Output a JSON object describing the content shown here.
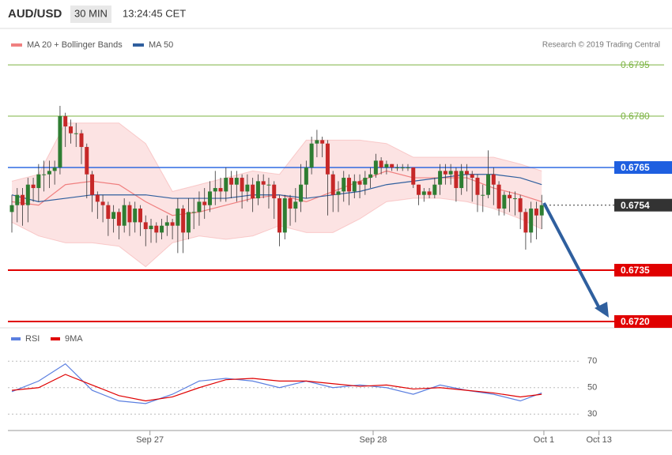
{
  "header": {
    "symbol": "AUD/USD",
    "interval": "30 MIN",
    "time": "13:24:45 CET"
  },
  "credit": "Research © 2019 Trading Central",
  "chart_data": [
    {
      "type": "candlestick",
      "ylim": [
        0.6718,
        0.6797
      ],
      "up_color": "#2e7d32",
      "down_color": "#c62828",
      "levels": [
        {
          "value": 0.6795,
          "color": "#7cb342",
          "badge": false
        },
        {
          "value": 0.678,
          "label": "0.6780",
          "color": "#7cb342",
          "badge": false
        },
        {
          "value": 0.6765,
          "color": "#1e5fe0",
          "badge": true
        },
        {
          "value": 0.6754,
          "color": "#333333",
          "badge": true,
          "dashed": true
        },
        {
          "value": 0.6735,
          "color": "#e00000",
          "badge": true
        },
        {
          "value": 0.672,
          "label": "0.6720",
          "color": "#e00000",
          "badge": true
        }
      ],
      "candles": [
        [
          0.6752,
          0.6757,
          0.6746,
          0.6754
        ],
        [
          0.6754,
          0.6759,
          0.6749,
          0.6757
        ],
        [
          0.6757,
          0.6759,
          0.6748,
          0.6754
        ],
        [
          0.6754,
          0.6762,
          0.6749,
          0.676
        ],
        [
          0.676,
          0.6762,
          0.6755,
          0.6759
        ],
        [
          0.6759,
          0.6766,
          0.6755,
          0.6763
        ],
        [
          0.6763,
          0.6767,
          0.6758,
          0.6763
        ],
        [
          0.6763,
          0.6767,
          0.6759,
          0.6764
        ],
        [
          0.6764,
          0.6767,
          0.676,
          0.6765
        ],
        [
          0.6765,
          0.6783,
          0.6763,
          0.678
        ],
        [
          0.678,
          0.6781,
          0.6771,
          0.6777
        ],
        [
          0.6777,
          0.6779,
          0.6772,
          0.6775
        ],
        [
          0.6775,
          0.6778,
          0.6771,
          0.6775
        ],
        [
          0.6775,
          0.6776,
          0.6766,
          0.6771
        ],
        [
          0.6771,
          0.6772,
          0.6756,
          0.6763
        ],
        [
          0.6763,
          0.6764,
          0.6752,
          0.6757
        ],
        [
          0.6757,
          0.6758,
          0.675,
          0.6755
        ],
        [
          0.6755,
          0.6757,
          0.6749,
          0.6754
        ],
        [
          0.6754,
          0.6755,
          0.6745,
          0.675
        ],
        [
          0.675,
          0.6754,
          0.6746,
          0.6752
        ],
        [
          0.6752,
          0.6753,
          0.6744,
          0.6748
        ],
        [
          0.6748,
          0.6756,
          0.6746,
          0.6754
        ],
        [
          0.6754,
          0.6755,
          0.6745,
          0.6749
        ],
        [
          0.6749,
          0.6755,
          0.6746,
          0.6753
        ],
        [
          0.6753,
          0.6754,
          0.6745,
          0.6749
        ],
        [
          0.6749,
          0.6751,
          0.6742,
          0.6747
        ],
        [
          0.6747,
          0.675,
          0.6743,
          0.6748
        ],
        [
          0.6748,
          0.6749,
          0.6743,
          0.6746
        ],
        [
          0.6746,
          0.675,
          0.6744,
          0.6748
        ],
        [
          0.6748,
          0.6751,
          0.6745,
          0.6749
        ],
        [
          0.6749,
          0.675,
          0.6744,
          0.6748
        ],
        [
          0.6748,
          0.6756,
          0.674,
          0.6753
        ],
        [
          0.6753,
          0.6754,
          0.674,
          0.6746
        ],
        [
          0.6746,
          0.6756,
          0.6744,
          0.6752
        ],
        [
          0.6752,
          0.6756,
          0.6747,
          0.6752
        ],
        [
          0.6752,
          0.6758,
          0.6748,
          0.6755
        ],
        [
          0.6755,
          0.6759,
          0.675,
          0.6754
        ],
        [
          0.6754,
          0.6761,
          0.6752,
          0.6758
        ],
        [
          0.6758,
          0.6764,
          0.6754,
          0.6759
        ],
        [
          0.6759,
          0.6762,
          0.6755,
          0.6758
        ],
        [
          0.6758,
          0.6765,
          0.6755,
          0.6762
        ],
        [
          0.6762,
          0.6764,
          0.6756,
          0.676
        ],
        [
          0.676,
          0.6764,
          0.6755,
          0.6762
        ],
        [
          0.6762,
          0.6763,
          0.6753,
          0.6758
        ],
        [
          0.6758,
          0.6763,
          0.6755,
          0.676
        ],
        [
          0.676,
          0.6762,
          0.6752,
          0.6756
        ],
        [
          0.6756,
          0.6763,
          0.6754,
          0.6761
        ],
        [
          0.6761,
          0.6763,
          0.6756,
          0.676
        ],
        [
          0.676,
          0.6762,
          0.6753,
          0.676
        ],
        [
          0.676,
          0.6761,
          0.675,
          0.6756
        ],
        [
          0.6756,
          0.6757,
          0.6742,
          0.6746
        ],
        [
          0.6746,
          0.6757,
          0.6744,
          0.6756
        ],
        [
          0.6756,
          0.6757,
          0.6748,
          0.6753
        ],
        [
          0.6753,
          0.6759,
          0.6749,
          0.6755
        ],
        [
          0.6755,
          0.6766,
          0.6752,
          0.676
        ],
        [
          0.676,
          0.6767,
          0.6756,
          0.6765
        ],
        [
          0.6765,
          0.6774,
          0.6763,
          0.6772
        ],
        [
          0.6772,
          0.6776,
          0.6768,
          0.6773
        ],
        [
          0.6773,
          0.6774,
          0.6768,
          0.6772
        ],
        [
          0.6772,
          0.6773,
          0.6751,
          0.6763
        ],
        [
          0.6763,
          0.6764,
          0.6752,
          0.6757
        ],
        [
          0.6757,
          0.6761,
          0.6752,
          0.6758
        ],
        [
          0.6758,
          0.6764,
          0.6755,
          0.6762
        ],
        [
          0.6762,
          0.6763,
          0.6754,
          0.6758
        ],
        [
          0.6758,
          0.6763,
          0.6756,
          0.6761
        ],
        [
          0.6761,
          0.6763,
          0.6756,
          0.676
        ],
        [
          0.676,
          0.6764,
          0.6757,
          0.6762
        ],
        [
          0.6762,
          0.6765,
          0.6759,
          0.6763
        ],
        [
          0.6763,
          0.6769,
          0.6762,
          0.6767
        ],
        [
          0.6767,
          0.6768,
          0.6763,
          0.6765
        ],
        [
          0.6765,
          0.6767,
          0.6763,
          0.6766
        ],
        [
          0.6766,
          0.6766,
          0.6764,
          0.6765
        ],
        [
          0.6765,
          0.6766,
          0.6764,
          0.6765
        ],
        [
          0.6765,
          0.6766,
          0.6764,
          0.6765
        ],
        [
          0.6765,
          0.6766,
          0.6764,
          0.6765
        ],
        [
          0.6765,
          0.6765,
          0.6759,
          0.676
        ],
        [
          0.676,
          0.676,
          0.6754,
          0.6757
        ],
        [
          0.6757,
          0.6759,
          0.6755,
          0.6758
        ],
        [
          0.6758,
          0.6759,
          0.6756,
          0.6757
        ],
        [
          0.6757,
          0.6762,
          0.6756,
          0.676
        ],
        [
          0.676,
          0.6766,
          0.6757,
          0.6764
        ],
        [
          0.6764,
          0.6766,
          0.676,
          0.6763
        ],
        [
          0.6763,
          0.6766,
          0.676,
          0.6764
        ],
        [
          0.6764,
          0.6765,
          0.6755,
          0.6759
        ],
        [
          0.6759,
          0.6766,
          0.6757,
          0.6764
        ],
        [
          0.6764,
          0.6766,
          0.6758,
          0.6763
        ],
        [
          0.6763,
          0.6764,
          0.6755,
          0.6762
        ],
        [
          0.6762,
          0.6763,
          0.6752,
          0.6757
        ],
        [
          0.6757,
          0.676,
          0.6752,
          0.6757
        ],
        [
          0.6757,
          0.677,
          0.6756,
          0.6763
        ],
        [
          0.6763,
          0.6765,
          0.6754,
          0.676
        ],
        [
          0.676,
          0.6761,
          0.6751,
          0.6753
        ],
        [
          0.6753,
          0.6758,
          0.6751,
          0.6757
        ],
        [
          0.6757,
          0.6758,
          0.6752,
          0.6756
        ],
        [
          0.6756,
          0.6758,
          0.6751,
          0.6756
        ],
        [
          0.6756,
          0.6757,
          0.6747,
          0.6752
        ],
        [
          0.6752,
          0.6753,
          0.6741,
          0.6746
        ],
        [
          0.6746,
          0.6755,
          0.6743,
          0.6753
        ],
        [
          0.6753,
          0.6755,
          0.6744,
          0.6751
        ],
        [
          0.6751,
          0.6757,
          0.6747,
          0.6754
        ]
      ],
      "x": [
        0,
        5,
        10,
        15,
        20,
        25,
        30,
        35,
        40,
        45,
        50,
        55,
        60,
        65,
        70,
        75,
        80,
        85,
        90,
        95,
        99
      ],
      "series": [
        {
          "name": "MA 20 + Bollinger Bands",
          "color": "#f08080",
          "values": [
            0.6755,
            0.6754,
            0.676,
            0.6761,
            0.676,
            0.6755,
            0.6751,
            0.6752,
            0.6754,
            0.6756,
            0.6757,
            0.6755,
            0.6758,
            0.6761,
            0.6764,
            0.6762,
            0.6762,
            0.6762,
            0.6759,
            0.6757,
            0.6755
          ],
          "upper": [
            0.6761,
            0.6763,
            0.6778,
            0.6778,
            0.6778,
            0.6772,
            0.6758,
            0.676,
            0.6762,
            0.6764,
            0.6763,
            0.6773,
            0.6773,
            0.6773,
            0.6772,
            0.6768,
            0.6768,
            0.6768,
            0.6768,
            0.6766,
            0.6764
          ],
          "lower": [
            0.6749,
            0.6745,
            0.6743,
            0.6743,
            0.6742,
            0.6736,
            0.6743,
            0.6745,
            0.6744,
            0.6745,
            0.6748,
            0.6746,
            0.6746,
            0.675,
            0.6755,
            0.6756,
            0.6756,
            0.6755,
            0.6753,
            0.675,
            0.6747
          ]
        },
        {
          "name": "MA 50",
          "color": "#2f5f9e",
          "values": [
            0.6757,
            0.6755,
            0.6756,
            0.6757,
            0.6757,
            0.6757,
            0.6756,
            0.6756,
            0.6756,
            0.6757,
            0.6757,
            0.6756,
            0.6757,
            0.6758,
            0.676,
            0.6761,
            0.6762,
            0.6763,
            0.6763,
            0.6762,
            0.676
          ]
        }
      ]
    },
    {
      "type": "line",
      "ylim": [
        20,
        80
      ],
      "yticks": [
        70,
        50,
        30
      ],
      "grid": true,
      "x": [
        0,
        5,
        10,
        15,
        20,
        25,
        30,
        35,
        40,
        45,
        50,
        55,
        60,
        65,
        70,
        75,
        80,
        85,
        90,
        95,
        99
      ],
      "xticks": [
        {
          "value": 25.8,
          "label": "Sep 27"
        },
        {
          "value": 67.5,
          "label": "Sep 28"
        },
        {
          "value": 99.4,
          "label": "Oct 1"
        },
        {
          "value": 109.7,
          "label": "Oct 13"
        }
      ],
      "series": [
        {
          "name": "RSI",
          "color": "#5b7fe0",
          "values": [
            47,
            55,
            68,
            48,
            40,
            38,
            45,
            55,
            57,
            55,
            50,
            55,
            50,
            52,
            50,
            45,
            52,
            48,
            45,
            40,
            46
          ]
        },
        {
          "name": "9MA",
          "color": "#e00000",
          "values": [
            48,
            50,
            60,
            52,
            44,
            40,
            43,
            50,
            56,
            57,
            55,
            55,
            53,
            51,
            52,
            49,
            50,
            48,
            46,
            43,
            45
          ]
        }
      ]
    }
  ]
}
